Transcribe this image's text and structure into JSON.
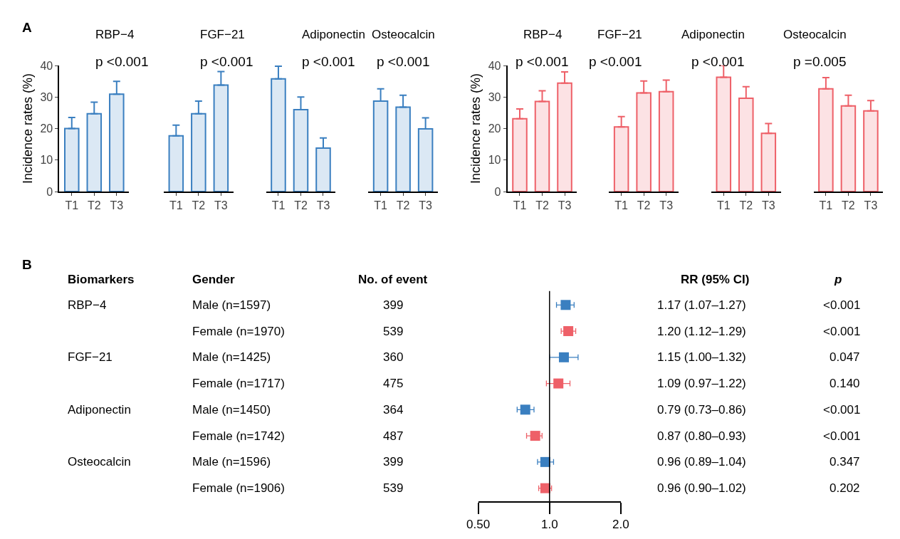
{
  "chart_data": [
    {
      "type": "bar",
      "title": "RBP−4",
      "subtitle": "p <0.001",
      "ylabel": "Incidence rates (%)",
      "annotations": [
        "A"
      ],
      "categories": [
        "T1",
        "T2",
        "T3"
      ],
      "ylim": [
        0,
        40
      ],
      "yticks": [
        0,
        10,
        20,
        30,
        40
      ],
      "series": [
        {
          "color": "#3a7fc0",
          "values": [
            20,
            24.7,
            30.9
          ],
          "errors": [
            [
              20,
              23.5
            ],
            [
              24.7,
              28.4
            ],
            [
              30.9,
              35
            ]
          ]
        }
      ]
    },
    {
      "type": "bar",
      "title": "FGF−21",
      "subtitle": "p <0.001",
      "categories": [
        "T1",
        "T2",
        "T3"
      ],
      "ylim": [
        0,
        40
      ],
      "yticks": [
        0,
        10,
        20,
        30,
        40
      ],
      "tick_labels": "x",
      "series": [
        {
          "color": "#3a7fc0",
          "values": [
            17.7,
            24.7,
            33.8
          ],
          "errors": [
            [
              17.7,
              21.1
            ],
            [
              24.7,
              28.7
            ],
            [
              33.8,
              38.1
            ]
          ]
        }
      ]
    },
    {
      "type": "bar",
      "title": "Adiponectin",
      "subtitle": "p <0.001",
      "categories": [
        "T1",
        "T2",
        "T3"
      ],
      "ylim": [
        0,
        40
      ],
      "yticks": [
        0,
        10,
        20,
        30,
        40
      ],
      "tick_labels": "x",
      "series": [
        {
          "color": "#3a7fc0",
          "values": [
            35.8,
            26,
            13.8
          ],
          "errors": [
            [
              35.8,
              39.8
            ],
            [
              26,
              30
            ],
            [
              13.8,
              17
            ]
          ]
        }
      ]
    },
    {
      "type": "bar",
      "title": "Osteocalcin",
      "subtitle": "p <0.001",
      "categories": [
        "T1",
        "T2",
        "T3"
      ],
      "ylim": [
        0,
        40
      ],
      "yticks": [
        0,
        10,
        20,
        30,
        40
      ],
      "tick_labels": "x",
      "series": [
        {
          "color": "#3a7fc0",
          "values": [
            28.7,
            26.8,
            19.9
          ],
          "errors": [
            [
              28.7,
              32.6
            ],
            [
              26.8,
              30.6
            ],
            [
              19.9,
              23.4
            ]
          ]
        }
      ]
    },
    {
      "type": "bar",
      "title": "RBP−4",
      "subtitle": "p <0.001",
      "ylabel": "Incidence rates (%)",
      "categories": [
        "T1",
        "T2",
        "T3"
      ],
      "ylim": [
        0,
        40
      ],
      "yticks": [
        0,
        10,
        20,
        30,
        40
      ],
      "series": [
        {
          "color": "#ee6068",
          "values": [
            23.1,
            28.6,
            34.4
          ],
          "errors": [
            [
              23.1,
              26.2
            ],
            [
              28.6,
              32
            ],
            [
              34.4,
              38
            ]
          ]
        }
      ]
    },
    {
      "type": "bar",
      "title": "FGF−21",
      "subtitle": "p <0.001",
      "categories": [
        "T1",
        "T2",
        "T3"
      ],
      "ylim": [
        0,
        40
      ],
      "yticks": [
        0,
        10,
        20,
        30,
        40
      ],
      "tick_labels": "x",
      "series": [
        {
          "color": "#ee6068",
          "values": [
            20.5,
            31.3,
            31.7
          ],
          "errors": [
            [
              20.5,
              23.8
            ],
            [
              31.3,
              35.1
            ],
            [
              31.7,
              35.4
            ]
          ]
        }
      ]
    },
    {
      "type": "bar",
      "title": "Adiponectin",
      "subtitle": "p <0.001",
      "categories": [
        "T1",
        "T2",
        "T3"
      ],
      "ylim": [
        0,
        40
      ],
      "yticks": [
        0,
        10,
        20,
        30,
        40
      ],
      "tick_labels": "x",
      "series": [
        {
          "color": "#ee6068",
          "values": [
            36.3,
            29.6,
            18.5
          ],
          "errors": [
            [
              36.3,
              40
            ],
            [
              29.6,
              33.3
            ],
            [
              18.5,
              21.6
            ]
          ]
        }
      ]
    },
    {
      "type": "bar",
      "title": "Osteocalcin",
      "subtitle": "p =0.005",
      "categories": [
        "T1",
        "T2",
        "T3"
      ],
      "ylim": [
        0,
        40
      ],
      "yticks": [
        0,
        10,
        20,
        30,
        40
      ],
      "tick_labels": "x",
      "series": [
        {
          "color": "#ee6068",
          "values": [
            32.6,
            27.2,
            25.6
          ],
          "errors": [
            [
              32.6,
              36.2
            ],
            [
              27.2,
              30.6
            ],
            [
              25.6,
              28.9
            ]
          ]
        }
      ]
    },
    {
      "type": "scatter",
      "orientation": "horizontal",
      "marker": "square",
      "log": "x",
      "xlim": [
        0.5,
        2
      ],
      "xticks": [
        {
          "value": 0.5,
          "label": "0.50"
        },
        {
          "value": 1,
          "label": "1.0"
        },
        {
          "value": 2,
          "label": "2.0"
        }
      ],
      "tick_labels": "x",
      "categories": [
        "Male (n=1597)",
        "Female (n=1970)",
        "Male (n=1425)",
        "Female (n=1717)",
        "Male (n=1450)",
        "Female (n=1742)",
        "Male (n=1596)",
        "Female (n=1906)"
      ],
      "values": [
        1.17,
        1.2,
        1.15,
        1.09,
        0.79,
        0.87,
        0.96,
        0.96
      ],
      "colors": [
        "#3a7fc0",
        "#ee6068",
        "#3a7fc0",
        "#ee6068",
        "#3a7fc0",
        "#ee6068",
        "#3a7fc0",
        "#ee6068"
      ],
      "errors": [
        [
          1.07,
          1.27
        ],
        [
          1.12,
          1.29
        ],
        [
          1.0,
          1.32
        ],
        [
          0.97,
          1.22
        ],
        [
          0.73,
          0.86
        ],
        [
          0.8,
          0.93
        ],
        [
          0.89,
          1.04
        ],
        [
          0.9,
          1.02
        ]
      ],
      "value_labels": [
        "1.17 (1.07–1.27)",
        "1.20 (1.12–1.29)",
        "1.15 (1.00–1.32)",
        "1.09 (0.97–1.22)",
        "0.79 (0.73–0.86)",
        "0.87 (0.80–0.93)",
        "0.96 (0.89–1.04)",
        "0.96 (0.90–1.02)"
      ],
      "ref_lines": [
        {
          "axis": "x",
          "value": 1,
          "color": "#000000"
        }
      ],
      "annotations": [
        "B",
        "Biomarkers",
        "Gender",
        "No. of event",
        "RR (95% CI)",
        "p",
        "RBP−4",
        "FGF−21",
        "Adiponectin",
        "Osteocalcin",
        "399",
        "539",
        "360",
        "475",
        "364",
        "487",
        "399",
        "539",
        "<0.001",
        "<0.001",
        "0.047",
        "0.140",
        "<0.001",
        "<0.001",
        "0.347",
        "0.202"
      ]
    }
  ]
}
